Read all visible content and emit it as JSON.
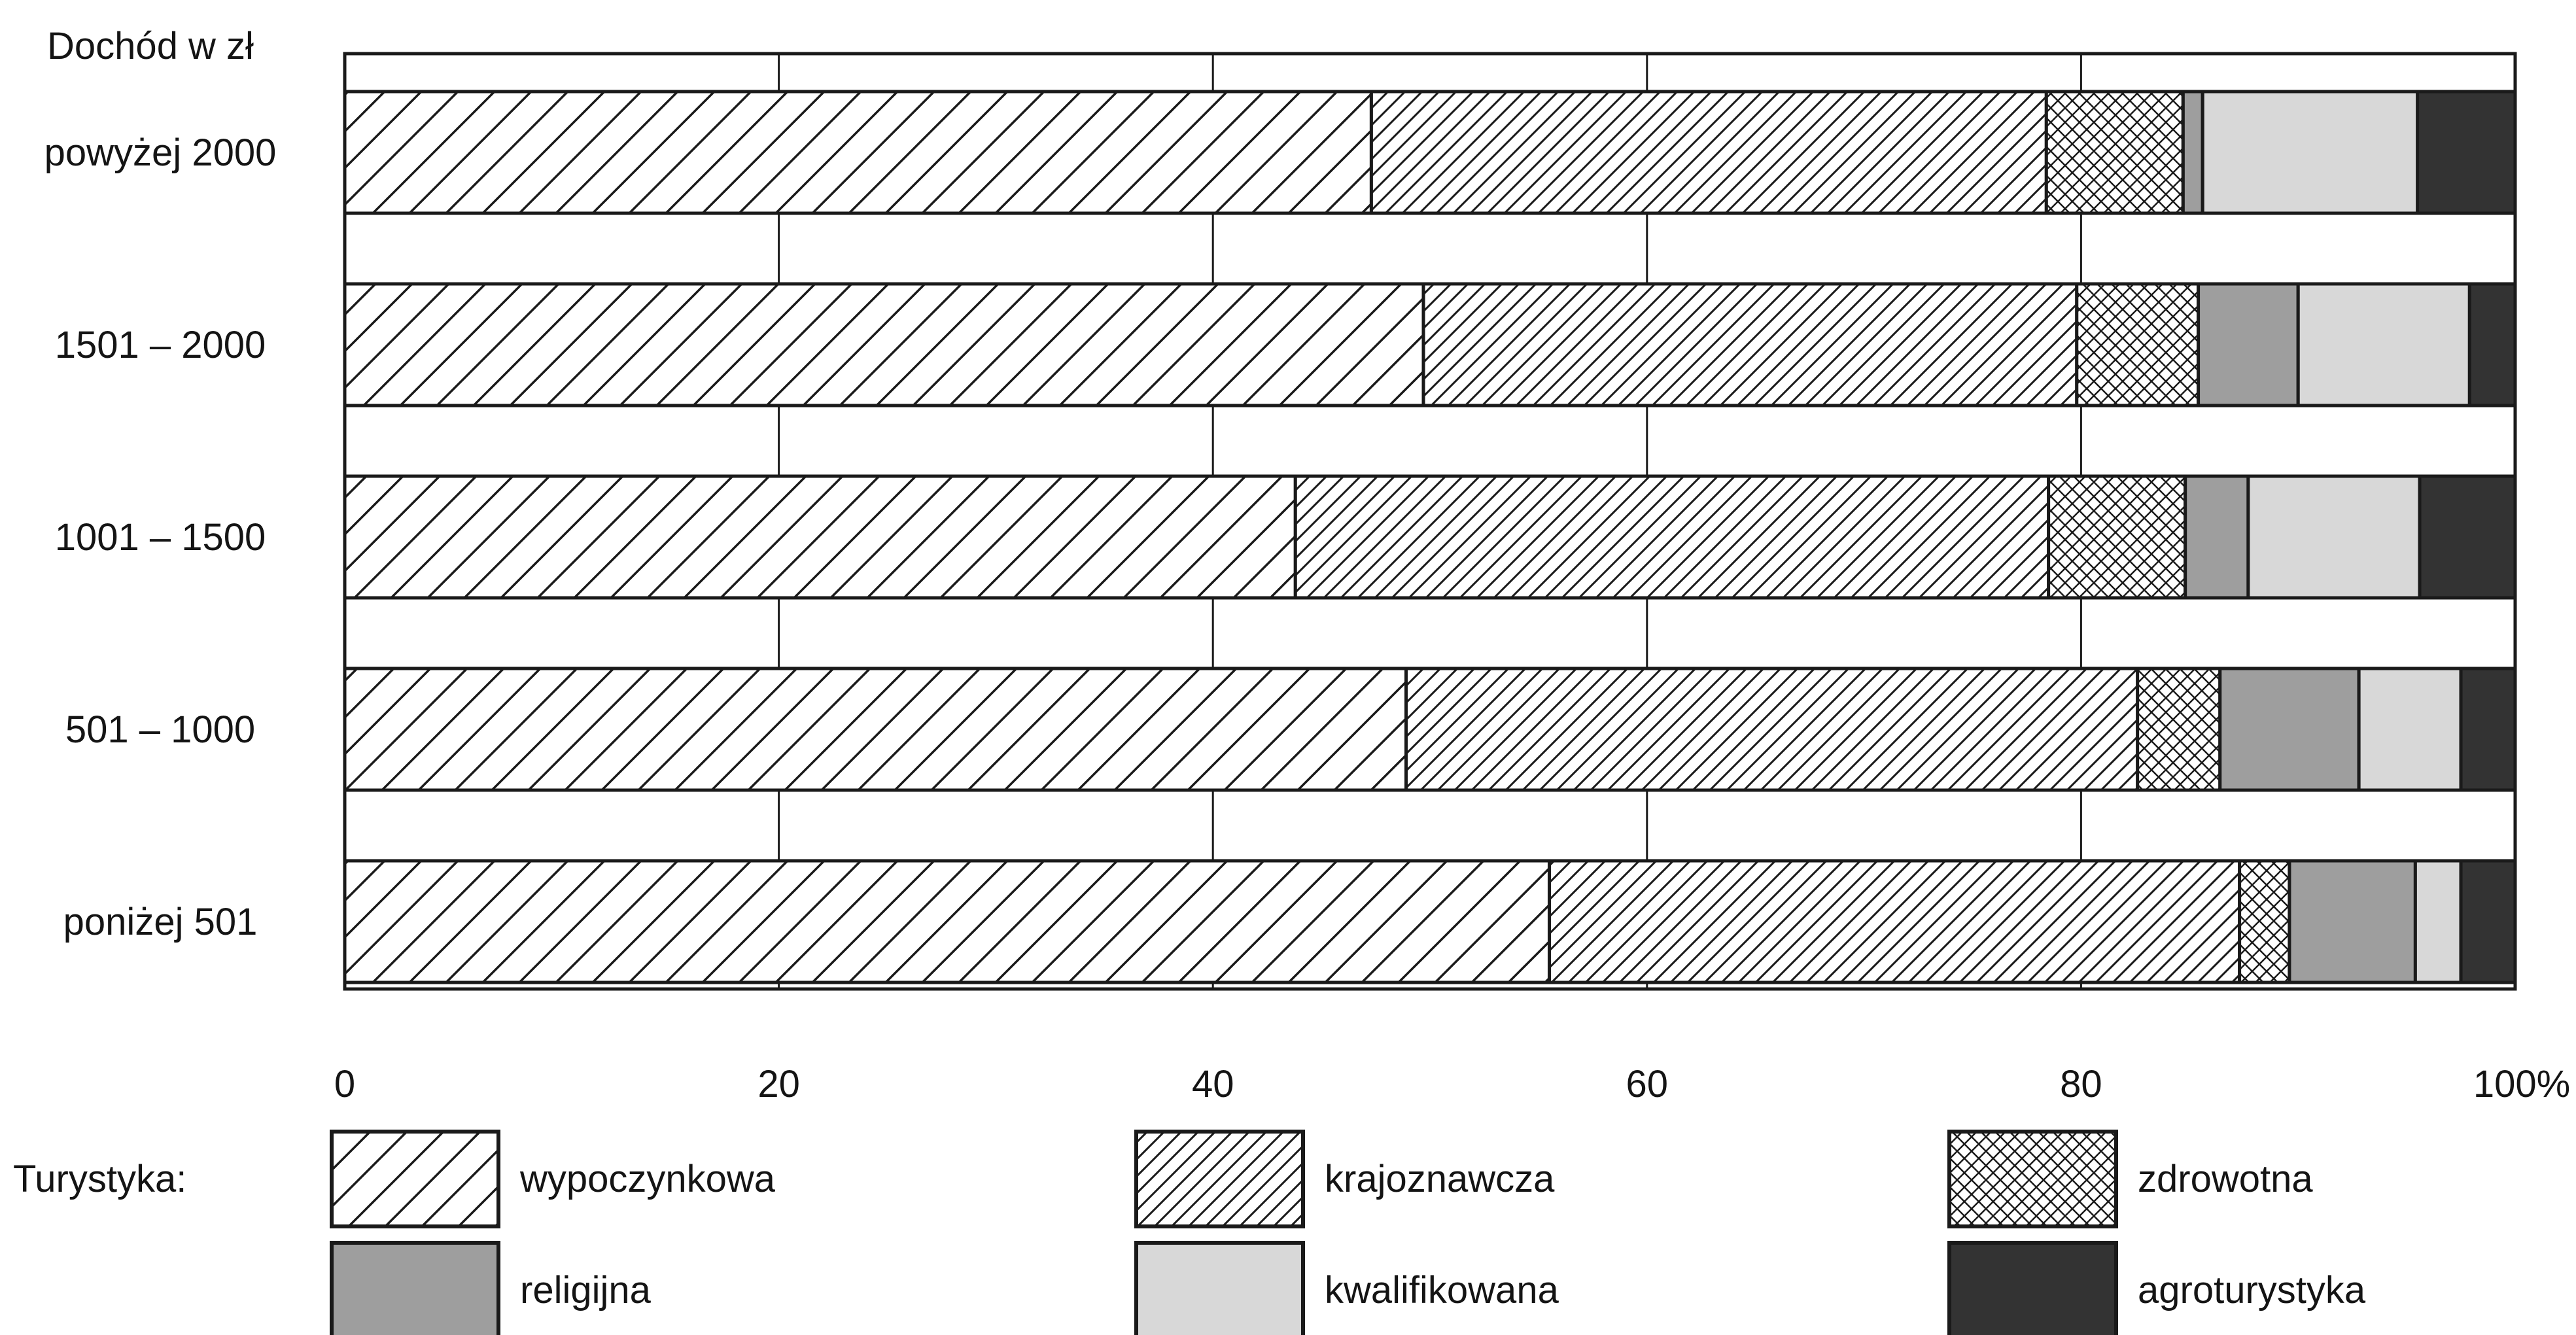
{
  "chart_data": {
    "type": "bar",
    "orientation": "horizontal",
    "stacked": true,
    "y_axis_title": "Dochód w zł",
    "categories": [
      "powyżej 2000",
      "1501 – 2000",
      "1001 – 1500",
      "501 – 1000",
      "poniżej 501"
    ],
    "x_ticks": [
      "0",
      "20",
      "40",
      "60",
      "80",
      "100%"
    ],
    "xlim": [
      0,
      100
    ],
    "legend_title": "Turystyka:",
    "legend_position": "bottom",
    "series": [
      {
        "name": "wypoczynkowa",
        "pattern": "hatch-wide",
        "values": [
          47.3,
          49.7,
          43.8,
          48.9,
          55.5
        ]
      },
      {
        "name": "krajoznawcza",
        "pattern": "hatch-dense",
        "values": [
          31.1,
          30.1,
          34.7,
          33.7,
          31.8
        ]
      },
      {
        "name": "zdrowotna",
        "pattern": "crosshatch",
        "values": [
          6.3,
          5.6,
          6.3,
          3.8,
          2.3
        ]
      },
      {
        "name": "religijna",
        "pattern": "fill",
        "color": "#9e9e9e",
        "values": [
          0.9,
          4.6,
          2.9,
          6.4,
          5.8
        ]
      },
      {
        "name": "kwalifikowana",
        "pattern": "fill",
        "color": "#d8d8d8",
        "values": [
          9.9,
          7.9,
          7.9,
          4.7,
          2.1
        ]
      },
      {
        "name": "agroturystyka",
        "pattern": "fill",
        "color": "#333333",
        "values": [
          4.5,
          2.1,
          4.4,
          2.5,
          2.5
        ]
      }
    ]
  }
}
